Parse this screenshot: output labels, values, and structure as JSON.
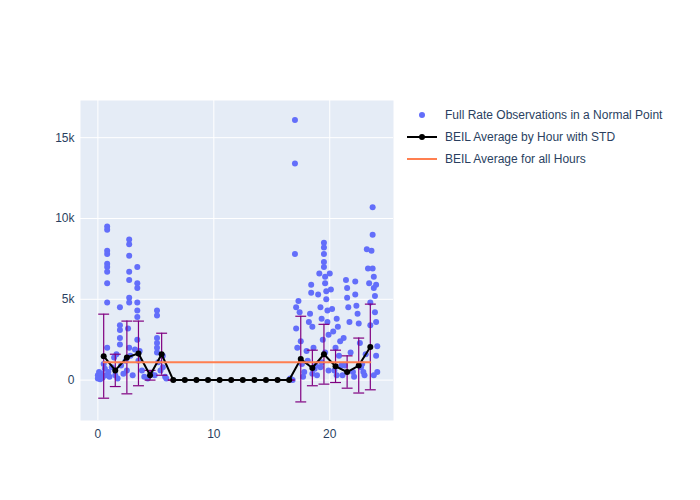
{
  "chart_data": {
    "type": "scatter",
    "legend": "right",
    "grid": true,
    "xlim": [
      -1.5,
      25.5
    ],
    "xticks": [
      0,
      10,
      20
    ],
    "ylim": [
      -2500,
      17300
    ],
    "yticks": [
      0,
      {
        "value": 5000,
        "label": "5k"
      },
      {
        "value": 10000,
        "label": "10k"
      },
      {
        "value": 15000,
        "label": "15k"
      }
    ],
    "series": [
      {
        "name": "Full Rate Observations in a Normal Point",
        "type": "scatter",
        "color": "#636efa",
        "marker": "circle",
        "x": [
          0.0,
          0.0,
          0.1,
          0.1,
          0.2,
          0.3,
          0.4,
          0.5,
          0.6,
          0.7,
          0.8,
          0.8,
          0.8,
          0.8,
          0.8,
          0.8,
          0.8,
          0.8,
          0.8,
          0.8,
          0.9,
          1.0,
          1.2,
          1.4,
          1.5,
          1.6,
          1.7,
          1.9,
          1.9,
          1.9,
          1.9,
          1.9,
          2.0,
          2.2,
          2.4,
          2.5,
          2.6,
          2.7,
          2.7,
          2.7,
          2.7,
          2.7,
          2.7,
          2.7,
          2.7,
          2.8,
          3.0,
          3.2,
          3.4,
          3.4,
          3.4,
          3.4,
          3.4,
          3.4,
          3.4,
          3.5,
          3.6,
          3.8,
          4.0,
          4.3,
          4.6,
          4.9,
          5.1,
          5.1,
          5.1,
          5.1,
          5.1,
          5.1,
          5.2,
          5.4,
          5.6,
          5.6,
          5.8,
          5.9,
          16.6,
          16.8,
          17.0,
          17.0,
          17.0,
          17.1,
          17.1,
          17.2,
          17.3,
          17.4,
          17.5,
          17.6,
          17.8,
          18.0,
          18.2,
          18.3,
          18.4,
          18.4,
          18.5,
          18.6,
          18.8,
          18.9,
          19.0,
          19.1,
          19.2,
          19.3,
          19.4,
          19.5,
          19.5,
          19.5,
          19.5,
          19.5,
          19.6,
          19.6,
          19.7,
          19.7,
          19.8,
          19.8,
          19.9,
          20.0,
          20.1,
          20.2,
          20.3,
          20.5,
          20.6,
          20.7,
          20.8,
          21.0,
          21.2,
          21.4,
          21.5,
          21.5,
          21.6,
          21.7,
          21.8,
          22.0,
          22.2,
          22.2,
          22.3,
          22.4,
          22.5,
          22.6,
          22.8,
          23.0,
          23.2,
          23.3,
          23.4,
          23.5,
          23.5,
          23.6,
          23.7,
          23.7,
          23.7,
          23.8,
          23.8,
          23.9,
          23.9,
          24.0,
          24.0,
          24.0,
          24.1,
          24.1,
          18.1,
          18.7,
          19.3,
          20.4,
          21.1,
          22.7,
          23.1,
          20.9,
          17.7,
          18.5,
          19.2,
          19.9,
          20.6,
          21.3,
          22.1,
          22.9,
          23.8,
          19.6
        ],
        "values": [
          300,
          100,
          500,
          200,
          50,
          400,
          150,
          1000,
          700,
          300,
          9500,
          9300,
          8000,
          7800,
          7200,
          7000,
          6700,
          6000,
          4800,
          2000,
          500,
          200,
          800,
          1400,
          300,
          1600,
          100,
          4500,
          3400,
          3100,
          2600,
          2200,
          900,
          400,
          1200,
          600,
          3200,
          8700,
          8400,
          7700,
          6700,
          6200,
          5100,
          4800,
          2000,
          1500,
          300,
          1900,
          7000,
          6000,
          5700,
          4800,
          4300,
          3900,
          2500,
          1200,
          1800,
          600,
          200,
          100,
          400,
          300,
          4300,
          4000,
          2600,
          2300,
          2000,
          1700,
          1100,
          600,
          1500,
          800,
          200,
          100,
          100,
          0,
          16100,
          13400,
          7800,
          4500,
          3200,
          2000,
          4900,
          4200,
          2400,
          1000,
          500,
          1800,
          3600,
          4100,
          5400,
          5900,
          3300,
          2000,
          900,
          300,
          5300,
          6600,
          4500,
          3800,
          2500,
          8500,
          8200,
          7800,
          7300,
          7000,
          6400,
          6000,
          5500,
          5000,
          4300,
          3600,
          2800,
          6600,
          5600,
          4400,
          3000,
          2000,
          3800,
          3300,
          1500,
          900,
          2600,
          6200,
          5700,
          5100,
          4500,
          3600,
          1700,
          500,
          6100,
          5300,
          4600,
          4100,
          3500,
          2300,
          1000,
          300,
          8100,
          6900,
          6000,
          4800,
          3400,
          8000,
          10700,
          9000,
          6900,
          6400,
          5700,
          5200,
          4200,
          5900,
          3600,
          1500,
          2100,
          500,
          1200,
          700,
          1100,
          600,
          300,
          800,
          1600,
          2400,
          200,
          400,
          800,
          600,
          300,
          900,
          200,
          500,
          300,
          1700
        ]
      },
      {
        "name": "BEIL Average by Hour with STD",
        "type": "line",
        "color": "#000000",
        "marker": "circle",
        "x": [
          0.5,
          1.5,
          2.5,
          3.5,
          4.5,
          5.5,
          6.5,
          7.5,
          8.5,
          9.5,
          10.5,
          11.5,
          12.5,
          13.5,
          14.5,
          15.5,
          16.5,
          17.5,
          18.5,
          19.5,
          20.5,
          21.5,
          22.5,
          23.5
        ],
        "values": [
          1480,
          600,
          1400,
          1650,
          300,
          1600,
          0,
          0,
          0,
          0,
          0,
          0,
          0,
          0,
          0,
          0,
          0,
          1300,
          750,
          1600,
          850,
          500,
          900,
          2050
        ],
        "error": [
          2600,
          1000,
          2250,
          2000,
          300,
          1300,
          0,
          0,
          0,
          0,
          0,
          0,
          0,
          0,
          0,
          0,
          0,
          2650,
          1100,
          1850,
          1000,
          1000,
          1700,
          2650
        ]
      },
      {
        "name": "BEIL Average for all Hours",
        "type": "line",
        "color": "#ff7f50",
        "x": [
          0.5,
          23.5
        ],
        "values": [
          1100,
          1100
        ]
      }
    ]
  }
}
